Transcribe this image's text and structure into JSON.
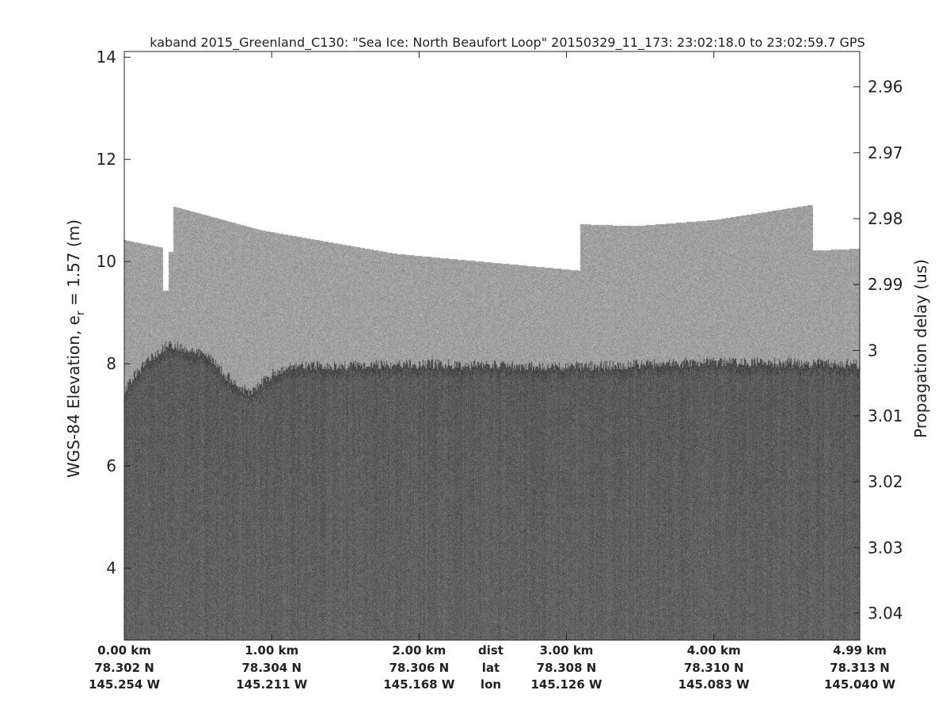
{
  "chart_data": {
    "type": "heatmap",
    "title": "kaband 2015_Greenland_C130: \"Sea Ice: North Beaufort Loop\"  20150329_11_173: 23:02:18.0 to 23:02:59.7 GPS",
    "ylabel": "WGS-84 Elevation, e",
    "ylabel_sub": "r",
    "ylabel_suffix": " = 1.57 (m)",
    "y2label": "Propagation delay (us)",
    "ylim": [
      2.59,
      14.5
    ],
    "yticks": [
      4,
      6,
      8,
      10,
      12,
      14
    ],
    "xlim_km": [
      0,
      4.99
    ],
    "y2ticks": [
      {
        "label": "2.96",
        "elev": 13.42
      },
      {
        "label": "2.97",
        "elev": 12.13
      },
      {
        "label": "2.98",
        "elev": 10.84
      },
      {
        "label": "2.99",
        "elev": 9.55
      },
      {
        "label": "3",
        "elev": 8.26
      },
      {
        "label": "3.01",
        "elev": 6.98
      },
      {
        "label": "3.02",
        "elev": 5.69
      },
      {
        "label": "3.03",
        "elev": 4.4
      },
      {
        "label": "3.04",
        "elev": 3.12
      }
    ],
    "xticks": [
      {
        "km": 0.0,
        "dist": "0.00 km",
        "lat": "78.302 N",
        "lon": "145.254 W"
      },
      {
        "km": 1.0,
        "dist": "1.00 km",
        "lat": "78.304 N",
        "lon": "145.211 W"
      },
      {
        "km": 2.0,
        "dist": "2.00 km",
        "lat": "78.306 N",
        "lon": "145.168 W"
      },
      {
        "km": 3.0,
        "dist": "3.00 km",
        "lat": "78.308 N",
        "lon": "145.126 W"
      },
      {
        "km": 4.0,
        "dist": "4.00 km",
        "lat": "78.310 N",
        "lon": "145.083 W"
      },
      {
        "km": 4.99,
        "dist": "4.99 km",
        "lat": "78.313 N",
        "lon": "145.040 W"
      }
    ],
    "row_labels": {
      "dist": "dist",
      "lat": "lat",
      "lon": "lon"
    },
    "data_top_profile": [
      [
        0,
        10.43
      ],
      [
        0.26,
        10.28
      ],
      [
        0.26,
        9.43
      ],
      [
        0.3,
        9.43
      ],
      [
        0.3,
        10.19
      ],
      [
        0.33,
        10.19
      ],
      [
        0.33,
        11.09
      ],
      [
        0.93,
        10.62
      ],
      [
        1.84,
        10.16
      ],
      [
        3.09,
        9.83
      ],
      [
        3.09,
        10.74
      ],
      [
        3.46,
        10.7
      ],
      [
        4.0,
        10.82
      ],
      [
        4.67,
        11.12
      ],
      [
        4.67,
        10.22
      ],
      [
        4.99,
        10.26
      ]
    ],
    "ice_surface_profile": [
      [
        0,
        7.5
      ],
      [
        0.1,
        7.9
      ],
      [
        0.3,
        8.4
      ],
      [
        0.55,
        8.2
      ],
      [
        0.75,
        7.6
      ],
      [
        0.85,
        7.45
      ],
      [
        1.0,
        7.8
      ],
      [
        1.15,
        7.95
      ],
      [
        2.0,
        8.0
      ],
      [
        3.0,
        7.95
      ],
      [
        4.0,
        8.05
      ],
      [
        4.99,
        8.0
      ]
    ],
    "colormap": "gray",
    "colors": {
      "air": "#a0a0a0",
      "ice": "#5a5a5a",
      "background": "#ffffff"
    }
  }
}
